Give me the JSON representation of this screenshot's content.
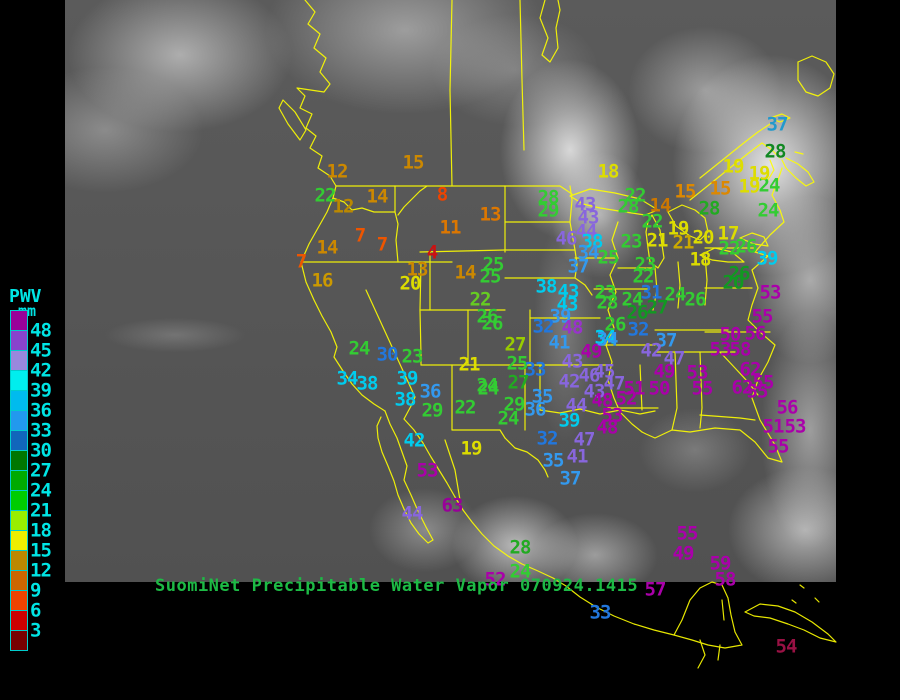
{
  "header": {
    "title_text": "SuomiNet Precipitable Water Vapor 070924.1415",
    "title_color": "#1DBA45"
  },
  "legend": {
    "title": "PWV",
    "units": "mm",
    "text_color": "#00E5E5",
    "tick_labels": [
      "48",
      "45",
      "42",
      "39",
      "36",
      "33",
      "30",
      "27",
      "24",
      "21",
      "18",
      "15",
      "12",
      "9",
      "6",
      "3"
    ],
    "colors": [
      "#990099",
      "#8844CC",
      "#9988DD",
      "#00EEEE",
      "#00BBEE",
      "#2299EE",
      "#1166BB",
      "#007700",
      "#00AA00",
      "#00CC00",
      "#99EE00",
      "#EEEE00",
      "#BB8800",
      "#CC6600",
      "#EE4400",
      "#CC0000",
      "#770000"
    ]
  },
  "map": {
    "outline_color": "#FFFF00"
  },
  "stations": [
    [
      "15",
      413,
      163,
      "#CC8800"
    ],
    [
      "12",
      337,
      172,
      "#CC8800"
    ],
    [
      "22",
      325,
      196,
      "#33CC33"
    ],
    [
      "12",
      343,
      207,
      "#BB8800"
    ],
    [
      "14",
      377,
      197,
      "#CC8800"
    ],
    [
      "8",
      442,
      195,
      "#EE4400"
    ],
    [
      "11",
      450,
      228,
      "#DD7700"
    ],
    [
      "7",
      360,
      236,
      "#EE5500"
    ],
    [
      "7",
      382,
      245,
      "#EE5500"
    ],
    [
      "4",
      432,
      253,
      "#CC1111"
    ],
    [
      "14",
      327,
      248,
      "#CC8800"
    ],
    [
      "7",
      301,
      262,
      "#EE5500"
    ],
    [
      "16",
      322,
      281,
      "#CC9900"
    ],
    [
      "13",
      417,
      270,
      "#CC8800"
    ],
    [
      "20",
      410,
      284,
      "#DDDD00"
    ],
    [
      "14",
      465,
      273,
      "#CC8800"
    ],
    [
      "13",
      490,
      215,
      "#DD7700"
    ],
    [
      "25",
      493,
      265,
      "#33CC33"
    ],
    [
      "25",
      490,
      277,
      "#33CC33"
    ],
    [
      "22",
      480,
      300,
      "#66CC22"
    ],
    [
      "26",
      487,
      317,
      "#33CC33"
    ],
    [
      "26",
      492,
      324,
      "#33CC33"
    ],
    [
      "28",
      548,
      198,
      "#33CC33"
    ],
    [
      "29",
      548,
      211,
      "#33CC33"
    ],
    [
      "18",
      608,
      172,
      "#DDDD00"
    ],
    [
      "22",
      635,
      196,
      "#33CC33"
    ],
    [
      "28",
      628,
      207,
      "#33CC33"
    ],
    [
      "14",
      660,
      206,
      "#CC7700"
    ],
    [
      "15",
      685,
      192,
      "#DD8800"
    ],
    [
      "22",
      652,
      222,
      "#33CC33"
    ],
    [
      "23",
      631,
      242,
      "#33CC33"
    ],
    [
      "21",
      657,
      241,
      "#DDDD00"
    ],
    [
      "19",
      678,
      229,
      "#DDDD00"
    ],
    [
      "21",
      683,
      243,
      "#CCAA00"
    ],
    [
      "20",
      703,
      238,
      "#DDDD00"
    ],
    [
      "17",
      728,
      234,
      "#DDDD00"
    ],
    [
      "28",
      709,
      209,
      "#22AA22"
    ],
    [
      "15",
      720,
      189,
      "#DD8800"
    ],
    [
      "19",
      749,
      187,
      "#DDDD00"
    ],
    [
      "24",
      769,
      186,
      "#33CC33"
    ],
    [
      "19",
      733,
      167,
      "#DDDD00"
    ],
    [
      "19",
      759,
      174,
      "#DDDD00"
    ],
    [
      "28",
      775,
      152,
      "#118822"
    ],
    [
      "37",
      777,
      125,
      "#2299CC"
    ],
    [
      "24",
      768,
      211,
      "#33CC33"
    ],
    [
      "22",
      729,
      249,
      "#33CC33"
    ],
    [
      "26",
      746,
      247,
      "#33CC33"
    ],
    [
      "39",
      767,
      259,
      "#00CCEE"
    ],
    [
      "26",
      739,
      274,
      "#119922"
    ],
    [
      "18",
      700,
      260,
      "#DDDD00"
    ],
    [
      "20",
      733,
      283,
      "#119922"
    ],
    [
      "46",
      566,
      239,
      "#8866DD"
    ],
    [
      "43",
      585,
      205,
      "#8866DD"
    ],
    [
      "43",
      588,
      218,
      "#8866DD"
    ],
    [
      "44",
      586,
      232,
      "#8866DD"
    ],
    [
      "38",
      592,
      242,
      "#00CCEE"
    ],
    [
      "34",
      588,
      253,
      "#3399EE"
    ],
    [
      "25",
      608,
      258,
      "#33CC33"
    ],
    [
      "37",
      578,
      267,
      "#3399EE"
    ],
    [
      "23",
      645,
      265,
      "#33CC33"
    ],
    [
      "22",
      643,
      277,
      "#33CC33"
    ],
    [
      "23",
      605,
      293,
      "#33CC33"
    ],
    [
      "28",
      607,
      303,
      "#33CC33"
    ],
    [
      "24",
      632,
      300,
      "#33CC33"
    ],
    [
      "31",
      651,
      293,
      "#2277DD"
    ],
    [
      "24",
      675,
      295,
      "#33CC33"
    ],
    [
      "26",
      695,
      300,
      "#33CC33"
    ],
    [
      "27",
      657,
      308,
      "#119922"
    ],
    [
      "26",
      637,
      313,
      "#119922"
    ],
    [
      "26",
      615,
      325,
      "#33CC33"
    ],
    [
      "32",
      638,
      330,
      "#2277DD"
    ],
    [
      "34",
      605,
      338,
      "#00CCEE"
    ],
    [
      "37",
      666,
      341,
      "#3399EE"
    ],
    [
      "38",
      546,
      287,
      "#00CCEE"
    ],
    [
      "43",
      568,
      292,
      "#00CCEE"
    ],
    [
      "43",
      567,
      305,
      "#00CCEE"
    ],
    [
      "39",
      560,
      317,
      "#3399EE"
    ],
    [
      "32",
      543,
      327,
      "#2277DD"
    ],
    [
      "48",
      572,
      328,
      "#9933CC"
    ],
    [
      "27",
      515,
      345,
      "#99CC00"
    ],
    [
      "25",
      517,
      364,
      "#33CC33"
    ],
    [
      "33",
      535,
      370,
      "#2277DD"
    ],
    [
      "27",
      518,
      383,
      "#22AA22"
    ],
    [
      "24",
      488,
      389,
      "#33CC33"
    ],
    [
      "29",
      514,
      405,
      "#33CC33"
    ],
    [
      "24",
      508,
      419,
      "#33CC33"
    ],
    [
      "36",
      535,
      410,
      "#3399EE"
    ],
    [
      "35",
      542,
      397,
      "#3399EE"
    ],
    [
      "41",
      559,
      343,
      "#3399EE"
    ],
    [
      "43",
      572,
      362,
      "#8866DD"
    ],
    [
      "42",
      569,
      382,
      "#8866DD"
    ],
    [
      "46",
      589,
      376,
      "#8866DD"
    ],
    [
      "45",
      604,
      372,
      "#8866DD"
    ],
    [
      "49",
      591,
      352,
      "#AA00AA"
    ],
    [
      "34",
      607,
      340,
      "#3399EE"
    ],
    [
      "43",
      594,
      392,
      "#8866DD"
    ],
    [
      "47",
      614,
      384,
      "#8866DD"
    ],
    [
      "44",
      576,
      406,
      "#8866DD"
    ],
    [
      "48",
      602,
      401,
      "#AA00AA"
    ],
    [
      "52",
      626,
      399,
      "#AA00AA"
    ],
    [
      "51",
      634,
      389,
      "#AA00AA"
    ],
    [
      "50",
      659,
      389,
      "#AA00AA"
    ],
    [
      "49",
      664,
      372,
      "#AA00AA"
    ],
    [
      "47",
      674,
      359,
      "#8866DD"
    ],
    [
      "42",
      651,
      351,
      "#8866DD"
    ],
    [
      "53",
      697,
      373,
      "#AA00AA"
    ],
    [
      "55",
      702,
      389,
      "#AA00AA"
    ],
    [
      "39",
      569,
      421,
      "#00CCEE"
    ],
    [
      "53",
      612,
      416,
      "#AA00AA"
    ],
    [
      "48",
      607,
      428,
      "#AA00AA"
    ],
    [
      "32",
      547,
      439,
      "#2277DD"
    ],
    [
      "47",
      584,
      440,
      "#8866DD"
    ],
    [
      "35",
      553,
      461,
      "#3399EE"
    ],
    [
      "41",
      577,
      457,
      "#8866DD"
    ],
    [
      "37",
      570,
      479,
      "#3399EE"
    ],
    [
      "24",
      359,
      349,
      "#33CC33"
    ],
    [
      "30",
      387,
      355,
      "#2277DD"
    ],
    [
      "23",
      412,
      357,
      "#33CC33"
    ],
    [
      "21",
      469,
      365,
      "#DDDD00"
    ],
    [
      "34",
      347,
      379,
      "#00CCEE"
    ],
    [
      "38",
      367,
      384,
      "#00CCEE"
    ],
    [
      "39",
      407,
      379,
      "#00CCEE"
    ],
    [
      "36",
      430,
      392,
      "#3399EE"
    ],
    [
      "38",
      405,
      400,
      "#00CCEE"
    ],
    [
      "24",
      487,
      386,
      "#33CC33"
    ],
    [
      "22",
      465,
      408,
      "#33CC33"
    ],
    [
      "29",
      432,
      411,
      "#33CC33"
    ],
    [
      "19",
      471,
      449,
      "#DDDD00"
    ],
    [
      "42",
      414,
      441,
      "#00CCEE"
    ],
    [
      "53",
      427,
      471,
      "#AA00AA"
    ],
    [
      "63",
      452,
      506,
      "#990099"
    ],
    [
      "44",
      412,
      514,
      "#8866DD"
    ],
    [
      "28",
      520,
      548,
      "#22AA22"
    ],
    [
      "55",
      687,
      534,
      "#AA00AA"
    ],
    [
      "49",
      683,
      554,
      "#AA00AA"
    ],
    [
      "59",
      720,
      564,
      "#AA00AA"
    ],
    [
      "58",
      725,
      580,
      "#AA00AA"
    ],
    [
      "57",
      655,
      590,
      "#AA00AA"
    ],
    [
      "33",
      600,
      613,
      "#2277DD"
    ],
    [
      "52",
      495,
      580,
      "#AA00AA"
    ],
    [
      "24",
      520,
      572,
      "#33CC33"
    ],
    [
      "54",
      786,
      647,
      "#991144"
    ],
    [
      "53",
      770,
      293,
      "#AA00AA"
    ],
    [
      "55",
      762,
      317,
      "#AA00AA"
    ],
    [
      "50",
      730,
      335,
      "#AA00AA"
    ],
    [
      "56",
      755,
      334,
      "#AA00AA"
    ],
    [
      "53",
      720,
      350,
      "#AA00AA"
    ],
    [
      "58",
      740,
      350,
      "#AA00AA"
    ],
    [
      "62",
      750,
      370,
      "#AA00AA"
    ],
    [
      "55",
      763,
      383,
      "#AA00AA"
    ],
    [
      "62",
      742,
      388,
      "#AA00AA"
    ],
    [
      "55",
      757,
      392,
      "#AA00AA"
    ],
    [
      "56",
      787,
      408,
      "#AA00AA"
    ],
    [
      "51",
      773,
      427,
      "#AA00AA"
    ],
    [
      "53",
      795,
      427,
      "#AA00AA"
    ],
    [
      "55",
      778,
      447,
      "#AA00AA"
    ]
  ]
}
